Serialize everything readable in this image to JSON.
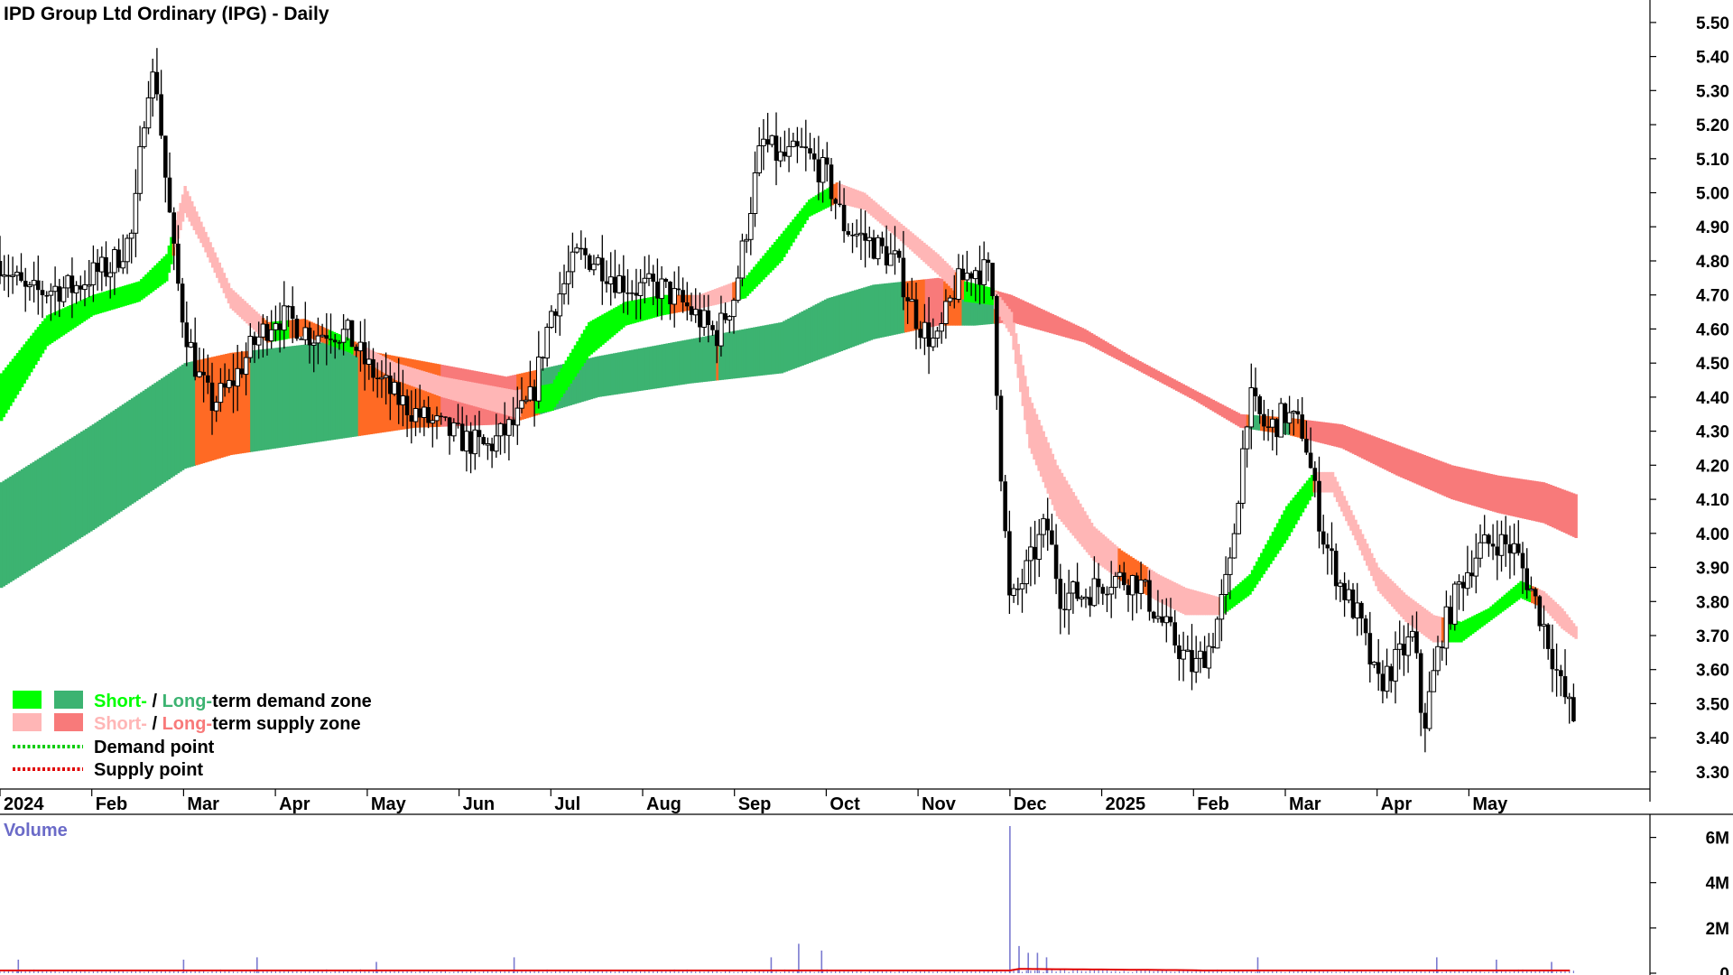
{
  "chart_data": {
    "type": "candlestick",
    "title": "IPD Group Ltd Ordinary (IPG) - Daily",
    "price_axis": {
      "ticks": [
        3.3,
        3.4,
        3.5,
        3.6,
        3.7,
        3.8,
        3.9,
        4.0,
        4.1,
        4.2,
        4.3,
        4.4,
        4.5,
        4.6,
        4.7,
        4.8,
        4.9,
        5.0,
        5.1,
        5.2,
        5.3,
        5.4,
        5.5
      ],
      "tick_labels": [
        "3.30",
        "3.40",
        "3.50",
        "3.60",
        "3.70",
        "3.80",
        "3.90",
        "4.00",
        "4.10",
        "4.20",
        "4.30",
        "4.40",
        "4.50",
        "4.60",
        "4.70",
        "4.80",
        "4.90",
        "5.00",
        "5.10",
        "5.20",
        "5.30",
        "5.40",
        "5.50"
      ],
      "range": [
        3.26,
        5.55
      ]
    },
    "x_axis": {
      "labels": [
        "2024",
        "Feb",
        "Mar",
        "Apr",
        "May",
        "Jun",
        "Jul",
        "Aug",
        "Sep",
        "Oct",
        "Nov",
        "Dec",
        "2025",
        "Feb",
        "Mar",
        "Apr",
        "May"
      ],
      "range_months": [
        0,
        17.5
      ]
    },
    "price_path": [
      [
        0,
        4.8
      ],
      [
        0.3,
        4.7
      ],
      [
        0.6,
        4.72
      ],
      [
        0.8,
        4.72
      ],
      [
        1.0,
        4.76
      ],
      [
        1.2,
        4.78
      ],
      [
        1.45,
        4.88
      ],
      [
        1.6,
        5.32
      ],
      [
        1.7,
        5.34
      ],
      [
        1.8,
        5.05
      ],
      [
        1.9,
        4.8
      ],
      [
        2.0,
        4.62
      ],
      [
        2.15,
        4.47
      ],
      [
        2.3,
        4.38
      ],
      [
        2.5,
        4.43
      ],
      [
        2.75,
        4.55
      ],
      [
        3.0,
        4.64
      ],
      [
        3.2,
        4.62
      ],
      [
        3.4,
        4.58
      ],
      [
        3.6,
        4.6
      ],
      [
        3.8,
        4.58
      ],
      [
        4.0,
        4.49
      ],
      [
        4.3,
        4.4
      ],
      [
        4.6,
        4.34
      ],
      [
        5.0,
        4.28
      ],
      [
        5.3,
        4.25
      ],
      [
        5.6,
        4.32
      ],
      [
        5.8,
        4.4
      ],
      [
        6.0,
        4.65
      ],
      [
        6.3,
        4.82
      ],
      [
        6.5,
        4.8
      ],
      [
        6.7,
        4.75
      ],
      [
        6.9,
        4.72
      ],
      [
        7.2,
        4.72
      ],
      [
        7.5,
        4.66
      ],
      [
        7.8,
        4.58
      ],
      [
        8.0,
        4.7
      ],
      [
        8.3,
        5.15
      ],
      [
        8.5,
        5.1
      ],
      [
        8.75,
        5.12
      ],
      [
        9.0,
        5.05
      ],
      [
        9.2,
        4.9
      ],
      [
        9.5,
        4.85
      ],
      [
        9.75,
        4.8
      ],
      [
        10.0,
        4.62
      ],
      [
        10.2,
        4.55
      ],
      [
        10.4,
        4.72
      ],
      [
        10.6,
        4.78
      ],
      [
        10.8,
        4.76
      ],
      [
        10.9,
        4.2
      ],
      [
        11.0,
        3.78
      ],
      [
        11.2,
        3.9
      ],
      [
        11.4,
        4.03
      ],
      [
        11.55,
        3.82
      ],
      [
        11.8,
        3.82
      ],
      [
        12.1,
        3.87
      ],
      [
        12.4,
        3.86
      ],
      [
        12.6,
        3.76
      ],
      [
        12.8,
        3.68
      ],
      [
        13.0,
        3.6
      ],
      [
        13.2,
        3.68
      ],
      [
        13.4,
        3.9
      ],
      [
        13.6,
        4.4
      ],
      [
        13.8,
        4.3
      ],
      [
        14.0,
        4.35
      ],
      [
        14.2,
        4.3
      ],
      [
        14.4,
        4.0
      ],
      [
        14.6,
        3.85
      ],
      [
        14.8,
        3.75
      ],
      [
        15.0,
        3.55
      ],
      [
        15.2,
        3.62
      ],
      [
        15.4,
        3.7
      ],
      [
        15.5,
        3.42
      ],
      [
        15.7,
        3.7
      ],
      [
        15.9,
        3.85
      ],
      [
        16.1,
        3.95
      ],
      [
        16.3,
        3.98
      ],
      [
        16.5,
        3.95
      ],
      [
        16.7,
        3.82
      ],
      [
        16.85,
        3.7
      ],
      [
        17.0,
        3.55
      ],
      [
        17.15,
        3.45
      ]
    ],
    "short_term_zone": {
      "upper": [
        [
          0,
          4.47
        ],
        [
          0.5,
          4.64
        ],
        [
          1.0,
          4.7
        ],
        [
          1.5,
          4.74
        ],
        [
          1.8,
          4.82
        ],
        [
          2.0,
          5.02
        ],
        [
          2.2,
          4.9
        ],
        [
          2.5,
          4.72
        ],
        [
          2.9,
          4.62
        ],
        [
          3.3,
          4.63
        ],
        [
          3.8,
          4.57
        ],
        [
          4.3,
          4.5
        ],
        [
          4.8,
          4.46
        ],
        [
          5.2,
          4.44
        ],
        [
          5.6,
          4.42
        ],
        [
          6.0,
          4.44
        ],
        [
          6.4,
          4.62
        ],
        [
          6.8,
          4.68
        ],
        [
          7.2,
          4.7
        ],
        [
          7.6,
          4.7
        ],
        [
          8.1,
          4.75
        ],
        [
          8.5,
          4.88
        ],
        [
          8.8,
          4.98
        ],
        [
          9.1,
          5.03
        ],
        [
          9.4,
          5.0
        ],
        [
          9.75,
          4.92
        ],
        [
          10.2,
          4.82
        ],
        [
          10.5,
          4.74
        ],
        [
          10.8,
          4.72
        ],
        [
          11.0,
          4.65
        ],
        [
          11.2,
          4.4
        ],
        [
          11.5,
          4.2
        ],
        [
          11.9,
          4.02
        ],
        [
          12.2,
          3.95
        ],
        [
          12.6,
          3.88
        ],
        [
          12.9,
          3.84
        ],
        [
          13.3,
          3.81
        ],
        [
          13.6,
          3.88
        ],
        [
          14.0,
          4.08
        ],
        [
          14.3,
          4.18
        ],
        [
          14.5,
          4.18
        ],
        [
          14.75,
          4.04
        ],
        [
          15.0,
          3.9
        ],
        [
          15.3,
          3.82
        ],
        [
          15.6,
          3.76
        ],
        [
          15.9,
          3.74
        ],
        [
          16.2,
          3.78
        ],
        [
          16.55,
          3.86
        ],
        [
          16.8,
          3.83
        ],
        [
          17.0,
          3.78
        ],
        [
          17.2,
          3.71
        ]
      ],
      "lower": [
        [
          0,
          4.33
        ],
        [
          0.5,
          4.55
        ],
        [
          1.0,
          4.64
        ],
        [
          1.5,
          4.68
        ],
        [
          1.8,
          4.74
        ],
        [
          2.0,
          4.94
        ],
        [
          2.2,
          4.84
        ],
        [
          2.5,
          4.66
        ],
        [
          2.9,
          4.56
        ],
        [
          3.3,
          4.58
        ],
        [
          3.8,
          4.53
        ],
        [
          4.3,
          4.45
        ],
        [
          4.8,
          4.4
        ],
        [
          5.2,
          4.37
        ],
        [
          5.6,
          4.34
        ],
        [
          6.0,
          4.36
        ],
        [
          6.4,
          4.52
        ],
        [
          6.8,
          4.61
        ],
        [
          7.2,
          4.64
        ],
        [
          7.6,
          4.66
        ],
        [
          8.1,
          4.69
        ],
        [
          8.5,
          4.8
        ],
        [
          8.8,
          4.93
        ],
        [
          9.1,
          4.97
        ],
        [
          9.4,
          4.95
        ],
        [
          9.75,
          4.87
        ],
        [
          10.2,
          4.76
        ],
        [
          10.5,
          4.68
        ],
        [
          10.8,
          4.67
        ],
        [
          11.0,
          4.58
        ],
        [
          11.2,
          4.25
        ],
        [
          11.5,
          4.05
        ],
        [
          11.9,
          3.92
        ],
        [
          12.2,
          3.86
        ],
        [
          12.6,
          3.8
        ],
        [
          12.9,
          3.76
        ],
        [
          13.3,
          3.76
        ],
        [
          13.6,
          3.82
        ],
        [
          14.0,
          3.98
        ],
        [
          14.3,
          4.12
        ],
        [
          14.5,
          4.12
        ],
        [
          14.75,
          3.98
        ],
        [
          15.0,
          3.83
        ],
        [
          15.3,
          3.74
        ],
        [
          15.6,
          3.68
        ],
        [
          15.9,
          3.68
        ],
        [
          16.2,
          3.74
        ],
        [
          16.55,
          3.81
        ],
        [
          16.8,
          3.78
        ],
        [
          17.0,
          3.72
        ],
        [
          17.2,
          3.68
        ]
      ]
    },
    "long_term_zone": {
      "upper": [
        [
          0,
          4.15
        ],
        [
          1.0,
          4.32
        ],
        [
          2.0,
          4.5
        ],
        [
          2.5,
          4.53
        ],
        [
          3.5,
          4.56
        ],
        [
          4.5,
          4.51
        ],
        [
          5.5,
          4.46
        ],
        [
          6.5,
          4.52
        ],
        [
          7.5,
          4.57
        ],
        [
          8.5,
          4.62
        ],
        [
          9.0,
          4.69
        ],
        [
          9.5,
          4.73
        ],
        [
          10.2,
          4.75
        ],
        [
          10.6,
          4.73
        ],
        [
          11.0,
          4.7
        ],
        [
          11.8,
          4.6
        ],
        [
          12.3,
          4.52
        ],
        [
          13.0,
          4.42
        ],
        [
          13.5,
          4.35
        ],
        [
          14.0,
          4.34
        ],
        [
          14.6,
          4.32
        ],
        [
          15.2,
          4.26
        ],
        [
          15.8,
          4.2
        ],
        [
          16.3,
          4.17
        ],
        [
          16.8,
          4.15
        ],
        [
          17.2,
          4.11
        ]
      ],
      "lower": [
        [
          0,
          3.84
        ],
        [
          1.0,
          4.01
        ],
        [
          2.0,
          4.19
        ],
        [
          2.5,
          4.23
        ],
        [
          3.5,
          4.27
        ],
        [
          4.5,
          4.31
        ],
        [
          5.5,
          4.32
        ],
        [
          6.5,
          4.4
        ],
        [
          7.5,
          4.44
        ],
        [
          8.5,
          4.47
        ],
        [
          9.0,
          4.52
        ],
        [
          9.5,
          4.57
        ],
        [
          10.2,
          4.61
        ],
        [
          10.6,
          4.61
        ],
        [
          11.0,
          4.62
        ],
        [
          11.8,
          4.56
        ],
        [
          12.3,
          4.49
        ],
        [
          13.0,
          4.39
        ],
        [
          13.5,
          4.31
        ],
        [
          14.0,
          4.29
        ],
        [
          14.6,
          4.25
        ],
        [
          15.2,
          4.17
        ],
        [
          15.8,
          4.1
        ],
        [
          16.3,
          4.06
        ],
        [
          16.8,
          4.03
        ],
        [
          17.2,
          3.98
        ]
      ]
    },
    "volume_axis": {
      "ticks": [
        0,
        2000000,
        4000000,
        6000000
      ],
      "tick_labels": [
        "0",
        "2M",
        "4M",
        "6M"
      ],
      "range": [
        0,
        6700000
      ]
    },
    "volume": {
      "label": "Volume",
      "average_level": 120000,
      "spikes": [
        [
          0.2,
          600000
        ],
        [
          2.0,
          600000
        ],
        [
          2.8,
          700000
        ],
        [
          4.1,
          500000
        ],
        [
          5.6,
          700000
        ],
        [
          8.4,
          700000
        ],
        [
          8.7,
          1300000
        ],
        [
          8.95,
          1000000
        ],
        [
          11.0,
          6500000
        ],
        [
          11.1,
          1200000
        ],
        [
          11.2,
          900000
        ],
        [
          11.3,
          900000
        ],
        [
          11.4,
          700000
        ],
        [
          13.7,
          700000
        ],
        [
          15.65,
          700000
        ],
        [
          16.3,
          600000
        ],
        [
          16.9,
          500000
        ]
      ]
    },
    "legend": [
      {
        "swatches": [
          "#00ff00",
          "#3cb371"
        ],
        "parts": [
          "Short-",
          " / ",
          "Long-",
          "term demand zone"
        ]
      },
      {
        "swatches": [
          "#ffb6b6",
          "#f87a7a"
        ],
        "parts": [
          "Short-",
          " / ",
          "Long-",
          "term supply zone"
        ]
      },
      {
        "line": "#00cc00",
        "text": "Demand point"
      },
      {
        "line": "#e00000",
        "text": "Supply point"
      }
    ],
    "colors": {
      "demand_short": "#00ff00",
      "demand_long": "#3cb371",
      "supply_short": "#ffb6b6",
      "supply_long": "#f87a7a",
      "conflict": "#ff6a24",
      "volume_bars": "#7a7ad0",
      "volume_avg": "#e00000",
      "axis_labels_volume": "#6b6bc8"
    },
    "grid": false,
    "legend_position": "bottom-left"
  }
}
